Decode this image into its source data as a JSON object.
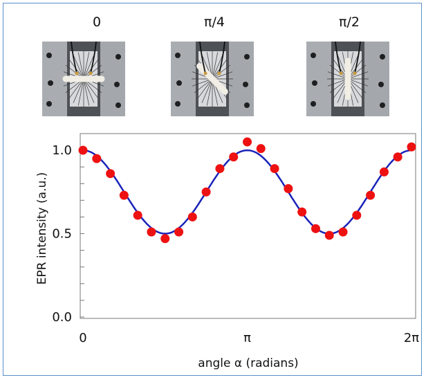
{
  "photos": [
    {
      "label": "0",
      "angle": 0
    },
    {
      "label": "π/4",
      "angle": 0.7854
    },
    {
      "label": "π/2",
      "angle": 1.5708
    }
  ],
  "chart_data": {
    "type": "scatter",
    "xlabel": "angle α (radians)",
    "ylabel": "EPR intensity (a.u.)",
    "xlim": [
      0,
      6.2832
    ],
    "ylim": [
      0,
      1.1
    ],
    "xticks": [
      {
        "value": 0,
        "label": "0"
      },
      {
        "value": 3.1416,
        "label": "π"
      },
      {
        "value": 6.2832,
        "label": "2π"
      }
    ],
    "yticks": [
      {
        "value": 0.0,
        "label": "0.0"
      },
      {
        "value": 0.5,
        "label": "0.5"
      },
      {
        "value": 1.0,
        "label": "1.0"
      }
    ],
    "series": [
      {
        "kind": "points",
        "color": "#ee1111",
        "x": [
          0.0,
          0.262,
          0.524,
          0.785,
          1.047,
          1.309,
          1.571,
          1.833,
          2.094,
          2.356,
          2.618,
          2.88,
          3.142,
          3.403,
          3.665,
          3.927,
          4.189,
          4.451,
          4.712,
          4.974,
          5.236,
          5.498,
          5.76,
          6.021,
          6.283
        ],
        "y": [
          1.0,
          0.95,
          0.86,
          0.73,
          0.61,
          0.51,
          0.47,
          0.51,
          0.6,
          0.75,
          0.89,
          0.96,
          1.05,
          1.01,
          0.89,
          0.77,
          0.63,
          0.53,
          0.49,
          0.51,
          0.61,
          0.73,
          0.87,
          0.96,
          1.02
        ]
      },
      {
        "kind": "fit",
        "color": "#1a22b8",
        "formula": "0.75 + 0.25*cos(2x)"
      }
    ]
  }
}
